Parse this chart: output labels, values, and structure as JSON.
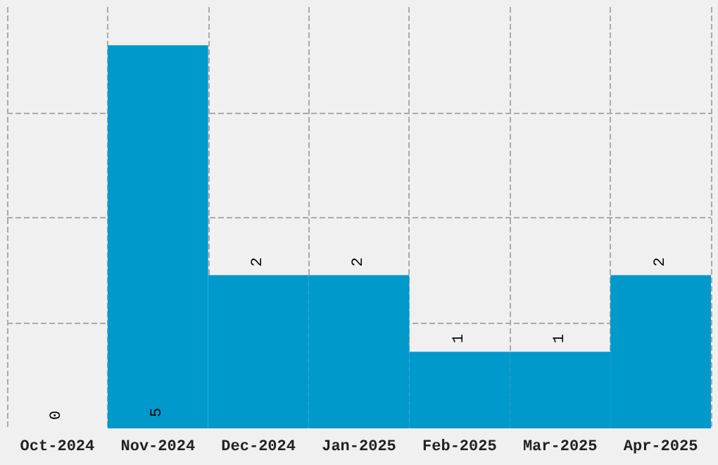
{
  "chart_data": {
    "type": "bar",
    "categories": [
      "Oct-2024",
      "Nov-2024",
      "Dec-2024",
      "Jan-2025",
      "Feb-2025",
      "Mar-2025",
      "Apr-2025"
    ],
    "values": [
      0,
      5,
      2,
      2,
      1,
      1,
      2
    ],
    "color": "#0099cc",
    "ylim": [
      0,
      5.5
    ],
    "yticks": [
      {
        "value": 1.375,
        "label": null
      },
      {
        "value": 2.75,
        "label": null
      },
      {
        "value": 4.125,
        "label": null
      }
    ],
    "tick_labels": "x",
    "grid": true,
    "data_labels": true
  }
}
